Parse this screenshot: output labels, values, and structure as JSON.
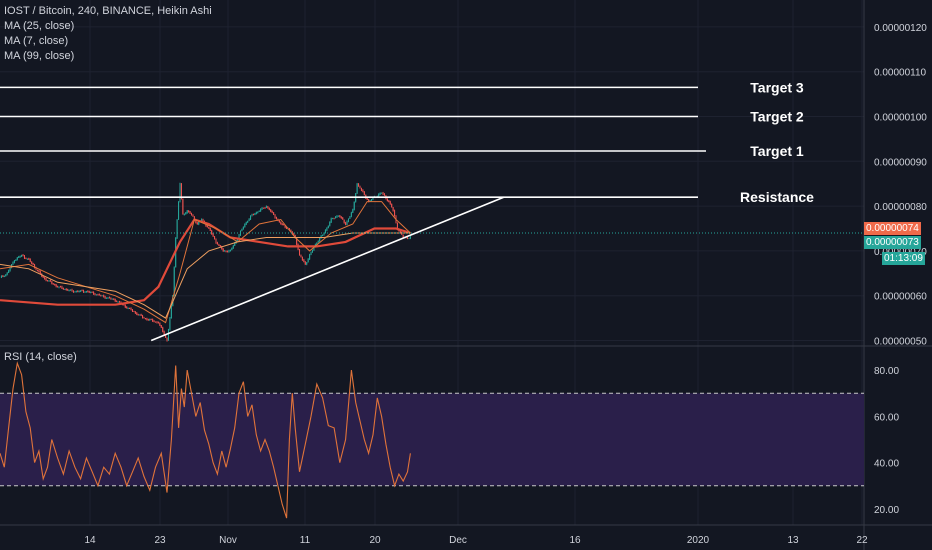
{
  "legend": {
    "symbol_line": "IOST / Bitcoin, 240, BINANCE, Heikin Ashi",
    "ma1": "MA (25, close)",
    "ma2": "MA (7, close)",
    "ma3": "MA (99, close)"
  },
  "rsi_label": "RSI (14, close)",
  "badges": {
    "last_value": "0.00000074",
    "price": "0.00000073",
    "timer": "01:13:09"
  },
  "colors": {
    "background": "#131722",
    "up": "#26a69a",
    "down": "#ef5350",
    "ma25": "#e0733a",
    "ma7": "#f0a060",
    "ma99": "#e04a3a",
    "rsi_line": "#e0733a",
    "rsi_band": "#2a1f4a",
    "lines": "#ffffff"
  },
  "chart_data": [
    {
      "type": "candlestick",
      "title": "IOST / Bitcoin, 240, BINANCE, Heikin Ashi",
      "x_tick_labels": [
        "14",
        "23",
        "Nov",
        "11",
        "20",
        "Dec",
        "16",
        "2020",
        "13",
        "22"
      ],
      "y_tick_labels": [
        "0.00000120",
        "0.00000110",
        "0.00000100",
        "0.00000090",
        "0.00000080",
        "0.00000070",
        "0.00000060",
        "0.00000050"
      ],
      "ylim": [
        4.9e-07,
        1.26e-06
      ],
      "price_path": [
        [
          0,
          6.4e-07
        ],
        [
          5,
          6.5e-07
        ],
        [
          10,
          6.8e-07
        ],
        [
          15,
          6.9e-07
        ],
        [
          20,
          6.8e-07
        ],
        [
          25,
          6.6e-07
        ],
        [
          30,
          6.4e-07
        ],
        [
          40,
          6.2e-07
        ],
        [
          50,
          6.1e-07
        ],
        [
          60,
          6.1e-07
        ],
        [
          70,
          6e-07
        ],
        [
          80,
          5.9e-07
        ],
        [
          90,
          5.7e-07
        ],
        [
          100,
          5.5e-07
        ],
        [
          110,
          5.4e-07
        ],
        [
          116,
          5e-07
        ],
        [
          120,
          6e-07
        ],
        [
          122,
          7.3e-07
        ],
        [
          125,
          8.5e-07
        ],
        [
          127,
          7.8e-07
        ],
        [
          130,
          7.9e-07
        ],
        [
          133,
          7.8e-07
        ],
        [
          137,
          7.6e-07
        ],
        [
          140,
          7.7e-07
        ],
        [
          145,
          7.5e-07
        ],
        [
          150,
          7.2e-07
        ],
        [
          155,
          7e-07
        ],
        [
          160,
          7e-07
        ],
        [
          165,
          7.3e-07
        ],
        [
          170,
          7.6e-07
        ],
        [
          175,
          7.8e-07
        ],
        [
          180,
          7.9e-07
        ],
        [
          185,
          8e-07
        ],
        [
          190,
          7.8e-07
        ],
        [
          195,
          7.6e-07
        ],
        [
          200,
          7.5e-07
        ],
        [
          205,
          7.3e-07
        ],
        [
          208,
          6.9e-07
        ],
        [
          212,
          6.7e-07
        ],
        [
          215,
          6.9e-07
        ],
        [
          220,
          7.2e-07
        ],
        [
          225,
          7.4e-07
        ],
        [
          230,
          7.7e-07
        ],
        [
          235,
          7.8e-07
        ],
        [
          240,
          7.6e-07
        ],
        [
          245,
          7.9e-07
        ],
        [
          248,
          8.5e-07
        ],
        [
          252,
          8.3e-07
        ],
        [
          256,
          8.1e-07
        ],
        [
          260,
          8.2e-07
        ],
        [
          265,
          8.3e-07
        ],
        [
          270,
          8.1e-07
        ],
        [
          273,
          7.9e-07
        ],
        [
          276,
          7.5e-07
        ],
        [
          280,
          7.3e-07
        ],
        [
          285,
          7.3e-07
        ]
      ],
      "ma25_path": [
        [
          0,
          6.6e-07
        ],
        [
          20,
          6.7e-07
        ],
        [
          40,
          6.4e-07
        ],
        [
          60,
          6.2e-07
        ],
        [
          80,
          6e-07
        ],
        [
          100,
          5.7e-07
        ],
        [
          115,
          5.4e-07
        ],
        [
          125,
          6.5e-07
        ],
        [
          135,
          7.7e-07
        ],
        [
          150,
          7.5e-07
        ],
        [
          165,
          7.2e-07
        ],
        [
          180,
          7.6e-07
        ],
        [
          195,
          7.7e-07
        ],
        [
          205,
          7.3e-07
        ],
        [
          215,
          7e-07
        ],
        [
          230,
          7.4e-07
        ],
        [
          245,
          7.6e-07
        ],
        [
          255,
          8.1e-07
        ],
        [
          265,
          8.1e-07
        ],
        [
          275,
          7.7e-07
        ],
        [
          285,
          7.4e-07
        ]
      ],
      "ma99_path": [
        [
          0,
          5.9e-07
        ],
        [
          40,
          5.8e-07
        ],
        [
          80,
          5.8e-07
        ],
        [
          100,
          5.9e-07
        ],
        [
          110,
          6.2e-07
        ],
        [
          125,
          7.2e-07
        ],
        [
          135,
          7.7e-07
        ],
        [
          145,
          7.6e-07
        ],
        [
          160,
          7.3e-07
        ],
        [
          180,
          7.2e-07
        ],
        [
          200,
          7.1e-07
        ],
        [
          220,
          7.1e-07
        ],
        [
          240,
          7.2e-07
        ],
        [
          260,
          7.5e-07
        ],
        [
          275,
          7.5e-07
        ],
        [
          285,
          7.4e-07
        ]
      ],
      "ma7_path": [
        [
          0,
          6.7e-07
        ],
        [
          20,
          6.6e-07
        ],
        [
          40,
          6.3e-07
        ],
        [
          60,
          6.2e-07
        ],
        [
          80,
          6.1e-07
        ],
        [
          100,
          5.8e-07
        ],
        [
          115,
          5.5e-07
        ],
        [
          130,
          6.6e-07
        ],
        [
          145,
          7e-07
        ],
        [
          165,
          7.2e-07
        ],
        [
          185,
          7.3e-07
        ],
        [
          205,
          7.3e-07
        ],
        [
          225,
          7.3e-07
        ],
        [
          245,
          7.4e-07
        ],
        [
          265,
          7.4e-07
        ],
        [
          285,
          7.4e-07
        ]
      ],
      "horizontal_levels": [
        {
          "label": "Target 3",
          "value": 1.065e-06
        },
        {
          "label": "Target 2",
          "value": 1e-06
        },
        {
          "label": "Target 1",
          "value": 9.23e-07
        },
        {
          "label": "Resistance",
          "value": 8.2e-07
        }
      ],
      "support_trendline": {
        "from": [
          105,
          5e-07
        ],
        "to": [
          350,
          8.2e-07
        ]
      },
      "last_price": 7.3e-07,
      "last_value_line": 7.4e-07
    },
    {
      "type": "line",
      "title": "RSI (14, close)",
      "y_tick_labels": [
        "80.00",
        "60.00",
        "40.00",
        "20.00"
      ],
      "ylim": [
        13,
        90
      ],
      "upper_band": 70,
      "lower_band": 30,
      "series": [
        {
          "values": [
            [
              0,
              44
            ],
            [
              3,
              38
            ],
            [
              6,
              55
            ],
            [
              9,
              72
            ],
            [
              12,
              83
            ],
            [
              15,
              78
            ],
            [
              18,
              62
            ],
            [
              21,
              55
            ],
            [
              24,
              40
            ],
            [
              27,
              45
            ],
            [
              30,
              33
            ],
            [
              33,
              38
            ],
            [
              36,
              50
            ],
            [
              40,
              42
            ],
            [
              44,
              35
            ],
            [
              48,
              45
            ],
            [
              52,
              38
            ],
            [
              56,
              33
            ],
            [
              60,
              42
            ],
            [
              64,
              36
            ],
            [
              68,
              30
            ],
            [
              72,
              38
            ],
            [
              76,
              35
            ],
            [
              80,
              44
            ],
            [
              84,
              38
            ],
            [
              88,
              30
            ],
            [
              92,
              36
            ],
            [
              96,
              42
            ],
            [
              100,
              34
            ],
            [
              104,
              28
            ],
            [
              108,
              38
            ],
            [
              112,
              44
            ],
            [
              116,
              27
            ],
            [
              119,
              50
            ],
            [
              122,
              82
            ],
            [
              124,
              55
            ],
            [
              126,
              72
            ],
            [
              128,
              64
            ],
            [
              130,
              80
            ],
            [
              133,
              70
            ],
            [
              136,
              60
            ],
            [
              139,
              66
            ],
            [
              142,
              54
            ],
            [
              145,
              48
            ],
            [
              148,
              40
            ],
            [
              151,
              35
            ],
            [
              154,
              45
            ],
            [
              157,
              38
            ],
            [
              160,
              46
            ],
            [
              163,
              55
            ],
            [
              166,
              70
            ],
            [
              169,
              75
            ],
            [
              172,
              60
            ],
            [
              175,
              65
            ],
            [
              178,
              52
            ],
            [
              181,
              45
            ],
            [
              184,
              50
            ],
            [
              187,
              45
            ],
            [
              190,
              38
            ],
            [
              193,
              30
            ],
            [
              196,
              22
            ],
            [
              199,
              16
            ],
            [
              201,
              50
            ],
            [
              203,
              70
            ],
            [
              205,
              55
            ],
            [
              208,
              36
            ],
            [
              212,
              48
            ],
            [
              216,
              60
            ],
            [
              220,
              74
            ],
            [
              224,
              68
            ],
            [
              228,
              56
            ],
            [
              232,
              55
            ],
            [
              236,
              40
            ],
            [
              240,
              50
            ],
            [
              244,
              80
            ],
            [
              247,
              66
            ],
            [
              250,
              58
            ],
            [
              253,
              50
            ],
            [
              256,
              44
            ],
            [
              259,
              52
            ],
            [
              262,
              68
            ],
            [
              265,
              60
            ],
            [
              268,
              48
            ],
            [
              271,
              38
            ],
            [
              274,
              30
            ],
            [
              277,
              35
            ],
            [
              280,
              32
            ],
            [
              283,
              36
            ],
            [
              285,
              44
            ]
          ]
        }
      ]
    }
  ],
  "icons": {}
}
